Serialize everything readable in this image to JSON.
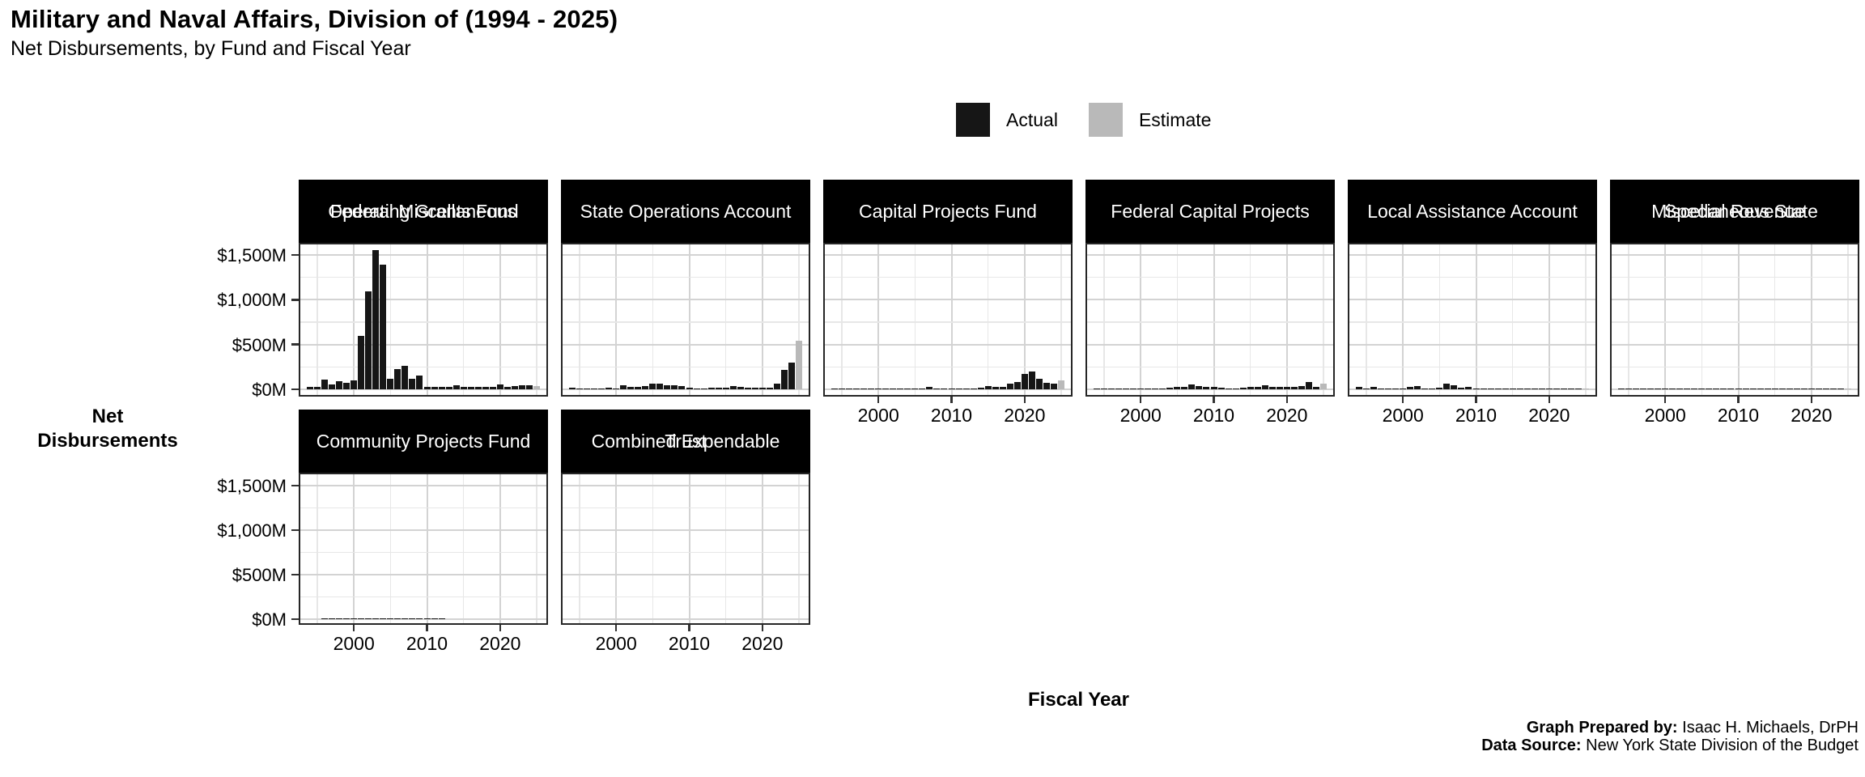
{
  "title": "Military and Naval Affairs, Division of (1994 - 2025)",
  "subtitle": "Net Disbursements, by Fund and Fiscal Year",
  "legend": {
    "actual_label": "Actual",
    "estimate_label": "Estimate"
  },
  "y_axis_title_line1": "Net",
  "y_axis_title_line2": "Disbursements",
  "x_axis_title": "Fiscal Year",
  "footer": {
    "prepared_by_label": "Graph Prepared by:",
    "prepared_by_value": "Isaac H. Michaels, DrPH",
    "source_label": "Data Source:",
    "source_value": "New York State Division of the Budget"
  },
  "chart_data": {
    "type": "bar",
    "title": "Military and Naval Affairs, Division of (1994 - 2025)",
    "subtitle": "Net Disbursements, by Fund and Fiscal Year",
    "xlabel": "Fiscal Year",
    "ylabel": "Net Disbursements",
    "units": "millions of dollars",
    "xlim": [
      1992.45,
      2026.55
    ],
    "ylim": [
      -80,
      1635
    ],
    "x": [
      1994,
      1995,
      1996,
      1997,
      1998,
      1999,
      2000,
      2001,
      2002,
      2003,
      2004,
      2005,
      2006,
      2007,
      2008,
      2009,
      2010,
      2011,
      2012,
      2013,
      2014,
      2015,
      2016,
      2017,
      2018,
      2019,
      2020,
      2021,
      2022,
      2023,
      2024,
      2025
    ],
    "x_ticks": [
      2000,
      2010,
      2020
    ],
    "x_tick_labels": [
      "2000",
      "2010",
      "2020"
    ],
    "x_minor_ticks": [
      1995,
      2005,
      2015,
      2025
    ],
    "y_ticks": [
      0,
      500,
      1000,
      1500
    ],
    "y_tick_labels": [
      "$0M",
      "$500M",
      "$1,000M",
      "$1,500M"
    ],
    "y_minor_ticks": [
      250,
      750,
      1250
    ],
    "grid": true,
    "legend_position": "top",
    "estimate_year": 2025,
    "colors": {
      "actual": "#161616",
      "estimate": "#B9B9B9",
      "strip_bg": "#000000",
      "strip_text": "#FFFFFF"
    },
    "facets": [
      {
        "label_lines": [
          "Federal Miscellaneous",
          "Operating Grants Fund"
        ],
        "values": [
          25,
          30,
          105,
          58,
          88,
          76,
          100,
          600,
          1095,
          1555,
          1395,
          118,
          225,
          264,
          115,
          155,
          30,
          25,
          25,
          30,
          45,
          30,
          25,
          30,
          30,
          30,
          55,
          25,
          35,
          45,
          45,
          35
        ]
      },
      {
        "label_lines": [
          "State Operations Account"
        ],
        "values": [
          15,
          12,
          8,
          8,
          10,
          15,
          12,
          42,
          30,
          25,
          36,
          60,
          66,
          48,
          48,
          40,
          15,
          12,
          12,
          15,
          15,
          15,
          35,
          25,
          20,
          18,
          15,
          18,
          65,
          220,
          300,
          545
        ]
      },
      {
        "label_lines": [
          "Capital Projects Fund"
        ],
        "values": [
          5,
          5,
          6,
          6,
          8,
          8,
          8,
          8,
          10,
          8,
          8,
          10,
          12,
          25,
          12,
          8,
          8,
          6,
          8,
          10,
          18,
          36,
          30,
          24,
          60,
          85,
          175,
          200,
          115,
          70,
          60,
          100
        ]
      },
      {
        "label_lines": [
          "Federal Capital Projects"
        ],
        "values": [
          3,
          3,
          3,
          4,
          4,
          5,
          8,
          10,
          10,
          12,
          15,
          25,
          30,
          55,
          36,
          30,
          24,
          15,
          12,
          12,
          15,
          24,
          24,
          42,
          30,
          24,
          30,
          30,
          36,
          80,
          30,
          65
        ]
      },
      {
        "label_lines": [
          "Local Assistance Account"
        ],
        "values": [
          25,
          8,
          25,
          8,
          5,
          5,
          8,
          30,
          36,
          8,
          5,
          18,
          65,
          42,
          15,
          25,
          2,
          2,
          2,
          2,
          2,
          2,
          2,
          2,
          2,
          2,
          2,
          2,
          2,
          2,
          2,
          2
        ]
      },
      {
        "label_lines": [
          "Miscellaneous State",
          "Special Revenue"
        ],
        "values": [
          6,
          6,
          6,
          6,
          6,
          6,
          6,
          6,
          6,
          6,
          6,
          6,
          6,
          6,
          6,
          6,
          6,
          6,
          6,
          6,
          6,
          6,
          6,
          6,
          6,
          6,
          6,
          6,
          6,
          6,
          6,
          6
        ]
      },
      {
        "label_lines": [
          "Community Projects Fund"
        ],
        "values": [
          0,
          0,
          1,
          1,
          1,
          1,
          1,
          1,
          1,
          1,
          1,
          1,
          1,
          1,
          1,
          1,
          1,
          1,
          1,
          0,
          0,
          0,
          0,
          0,
          0,
          0,
          0,
          0,
          0,
          0,
          0,
          0
        ]
      },
      {
        "label_lines": [
          "Combined Expendable",
          "Trust"
        ],
        "values": [
          0,
          0,
          0,
          0,
          0,
          0,
          0,
          0,
          0,
          0,
          0,
          0,
          0,
          0,
          0,
          0,
          0,
          0,
          0,
          0,
          0,
          0,
          0,
          0,
          0,
          0,
          0,
          0,
          0,
          0,
          0,
          0
        ]
      }
    ]
  }
}
